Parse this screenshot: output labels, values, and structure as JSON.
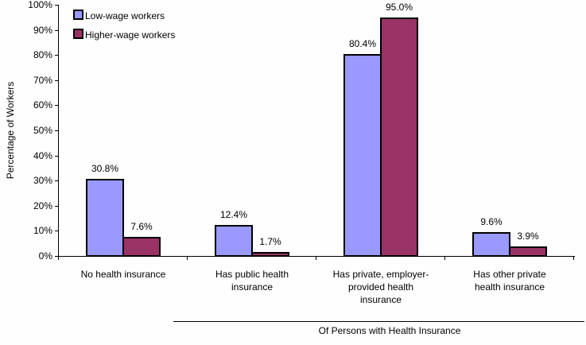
{
  "chart_data": {
    "type": "bar",
    "title": "",
    "xlabel": "",
    "ylabel": "Percentage of Workers",
    "ylim": [
      0,
      100
    ],
    "yticks": [
      "0%",
      "10%",
      "20%",
      "30%",
      "40%",
      "50%",
      "60%",
      "70%",
      "80%",
      "90%",
      "100%"
    ],
    "grid": false,
    "legend_position": "top-left inside",
    "categories": [
      "No health insurance",
      "Has public health insurance",
      "Has private, employer-provided health insurance",
      "Has other private health insurance"
    ],
    "category_lines": [
      [
        "No health insurance"
      ],
      [
        "Has public health",
        "insurance"
      ],
      [
        "Has private, employer-",
        "provided health",
        "insurance"
      ],
      [
        "Has other private",
        "health insurance"
      ]
    ],
    "series": [
      {
        "name": "Low-wage workers",
        "color": "#9999ff",
        "values": [
          30.8,
          12.4,
          80.4,
          9.6
        ],
        "labels": [
          "30.8%",
          "12.4%",
          "80.4%",
          "9.6%"
        ]
      },
      {
        "name": "Higher-wage workers",
        "color": "#993366",
        "values": [
          7.6,
          1.7,
          95.0,
          3.9
        ],
        "labels": [
          "7.6%",
          "1.7%",
          "95.0%",
          "3.9%"
        ]
      }
    ],
    "annotations": [
      {
        "text": "Of Persons with Health Insurance",
        "spans_categories": [
          1,
          2,
          3
        ]
      }
    ]
  },
  "legend": {
    "items": [
      {
        "label": "Low-wage workers",
        "color": "#9999ff"
      },
      {
        "label": "Higher-wage workers",
        "color": "#993366"
      }
    ]
  },
  "yaxis": {
    "label": "Percentage of Workers"
  },
  "group_annotation": "Of Persons with Health Insurance"
}
